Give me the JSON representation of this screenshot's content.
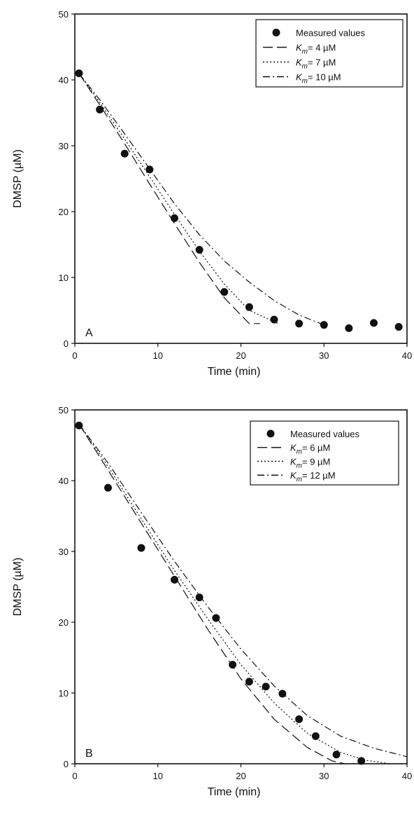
{
  "chart_data": [
    {
      "type": "scatter",
      "panel_label": "A",
      "xlabel": "Time (min)",
      "ylabel": "DMSP (µM)",
      "xlim": [
        0,
        40
      ],
      "ylim": [
        0,
        50
      ],
      "xticks": [
        0,
        10,
        20,
        30,
        40
      ],
      "yticks": [
        0,
        10,
        20,
        30,
        40,
        50
      ],
      "grid": false,
      "legend_position": "top-right",
      "legend": [
        {
          "prefix": "",
          "italic": "",
          "suffix": "Measured values",
          "style": "marker"
        },
        {
          "prefix": "",
          "italic": "K",
          "sub": "m",
          "suffix": "= 4 µM",
          "style": "dashed"
        },
        {
          "prefix": "",
          "italic": "K",
          "sub": "m",
          "suffix": "= 7 µM",
          "style": "dotted"
        },
        {
          "prefix": "",
          "italic": "K",
          "sub": "m",
          "suffix": "= 10 µM",
          "style": "dashdot"
        }
      ],
      "measured": {
        "x": [
          0.5,
          3,
          6,
          9,
          12,
          15,
          18,
          21,
          24,
          27,
          30,
          33,
          36,
          39
        ],
        "y": [
          41,
          35.5,
          28.8,
          26.4,
          19,
          14.2,
          7.8,
          5.5,
          3.6,
          3.0,
          2.8,
          2.3,
          3.1,
          2.5
        ]
      },
      "series": [
        {
          "label": "Km = 4 µM",
          "style": "dashed",
          "x": [
            0.5,
            3,
            6,
            9,
            12,
            15,
            18,
            21,
            22.3
          ],
          "y": [
            41,
            36.2,
            30.3,
            24.2,
            18.2,
            12.3,
            6.9,
            3.0,
            3.0
          ]
        },
        {
          "label": "Km = 7 µM",
          "style": "dotted",
          "x": [
            0.5,
            3,
            6,
            9,
            12,
            15,
            18,
            21,
            24.5
          ],
          "y": [
            41,
            36.6,
            31.0,
            25.3,
            19.6,
            14.0,
            9.0,
            5.0,
            3.0
          ]
        },
        {
          "label": "Km = 10 µM",
          "style": "dashdot",
          "x": [
            0.5,
            3,
            6,
            9,
            12,
            15,
            18,
            21,
            24,
            27,
            29.6
          ],
          "y": [
            41,
            37.0,
            31.8,
            26.5,
            21.2,
            16.5,
            12.5,
            9.3,
            6.5,
            4.3,
            3.0
          ]
        }
      ]
    },
    {
      "type": "scatter",
      "panel_label": "B",
      "xlabel": "Time (min)",
      "ylabel": "DMSP (µM)",
      "xlim": [
        0,
        40
      ],
      "ylim": [
        0,
        50
      ],
      "xticks": [
        0,
        10,
        20,
        30,
        40
      ],
      "yticks": [
        0,
        10,
        20,
        30,
        40,
        50
      ],
      "grid": false,
      "legend_position": "top-right",
      "legend": [
        {
          "prefix": "",
          "italic": "",
          "suffix": "Measured values",
          "style": "marker"
        },
        {
          "prefix": "",
          "italic": "K",
          "sub": "m",
          "suffix": "= 6 µM",
          "style": "dashed"
        },
        {
          "prefix": "",
          "italic": "K",
          "sub": "m",
          "suffix": "= 9 µM",
          "style": "dotted"
        },
        {
          "prefix": "",
          "italic": "K",
          "sub": "m",
          "suffix": "= 12 µM",
          "style": "dashdot"
        }
      ],
      "measured": {
        "x": [
          0.5,
          4,
          8,
          12,
          15,
          17,
          19,
          21,
          23,
          25,
          27,
          29,
          31.5,
          34.5
        ],
        "y": [
          47.8,
          39,
          30.5,
          26,
          23.5,
          20.6,
          14,
          11.6,
          10.9,
          9.9,
          6.3,
          3.9,
          1.3,
          0.4
        ]
      },
      "series": [
        {
          "label": "Km = 6 µM",
          "style": "dashed",
          "x": [
            0.5,
            4,
            8,
            12,
            16,
            20,
            24,
            28,
            31,
            32.5
          ],
          "y": [
            48,
            41.5,
            34,
            26.5,
            19,
            12,
            6.3,
            2.3,
            0.4,
            0
          ]
        },
        {
          "label": "Km = 9 µM",
          "style": "dotted",
          "x": [
            0.5,
            4,
            8,
            12,
            16,
            20,
            24,
            28,
            32,
            35,
            38
          ],
          "y": [
            48,
            42,
            34.6,
            27.3,
            20.5,
            14,
            8.6,
            4.3,
            1.6,
            0.5,
            0
          ]
        },
        {
          "label": "Km = 12 µM",
          "style": "dashdot",
          "x": [
            0.5,
            4,
            8,
            12,
            16,
            20,
            24,
            28,
            32,
            36,
            40
          ],
          "y": [
            48,
            42.5,
            35.5,
            28.6,
            22.2,
            16.2,
            11.0,
            6.8,
            3.9,
            2.2,
            1.0
          ]
        }
      ]
    }
  ]
}
